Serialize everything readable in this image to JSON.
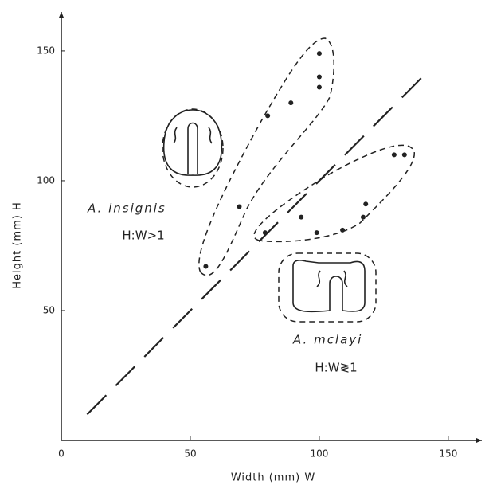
{
  "chart_data": {
    "type": "scatter",
    "x_label": "Width (mm) W",
    "y_label": "Height (mm) H",
    "xlim": [
      0,
      163
    ],
    "ylim": [
      0,
      165
    ],
    "xticks": [
      0,
      50,
      100,
      150
    ],
    "yticks": [
      50,
      100,
      150
    ],
    "series": [
      {
        "name": "A. insignis",
        "color": "#222222",
        "x": [
          56,
          69,
          80,
          89,
          100,
          100,
          100
        ],
        "values": [
          67,
          90,
          125,
          130,
          149,
          140,
          136
        ]
      },
      {
        "name": "A. mclayi",
        "color": "#222222",
        "x": [
          79,
          93,
          99,
          109,
          117,
          118,
          129,
          133
        ],
        "values": [
          80,
          86,
          80,
          81,
          86,
          91,
          110,
          110
        ]
      }
    ],
    "annotations": [
      "H:W>1",
      "H:W≷1"
    ],
    "reference_line": {
      "x": [
        10,
        140
      ],
      "y": [
        10,
        140
      ]
    }
  }
}
